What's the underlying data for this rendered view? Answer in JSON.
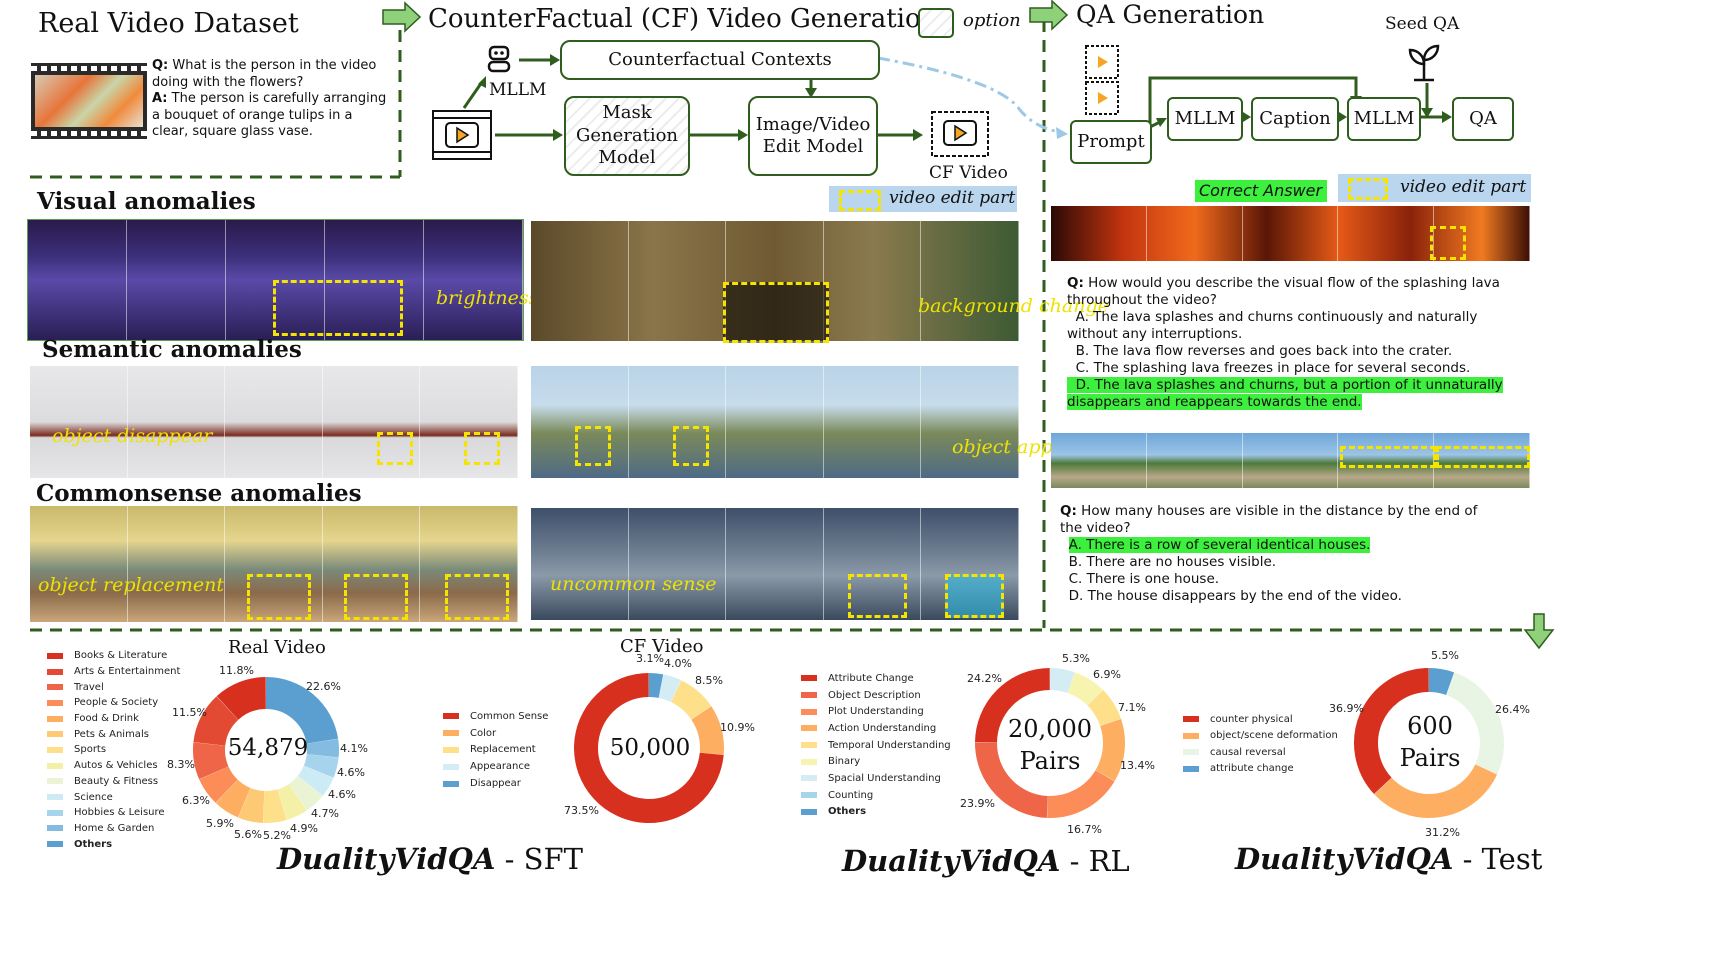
{
  "real_video": {
    "title": "Real Video Dataset",
    "q_label": "Q:",
    "question": "What is the person in the video doing with the flowers?",
    "a_label": "A:",
    "answer": "The person is carefully arranging a bouquet of orange tulips in a clear, square glass vase."
  },
  "cf_generation": {
    "title": "CounterFactual (CF) Video Generation",
    "option_label": "option",
    "mllm_label": "MLLM",
    "contexts_label": "Counterfactual Contexts",
    "mask_label": "Mask Generation Model",
    "edit_label": "Image/Video Edit Model",
    "cf_video_label": "CF Video",
    "edit_part_label": "video edit part"
  },
  "qa_generation": {
    "title": "QA Generation",
    "seed_label": "Seed QA",
    "prompt_label": "Prompt",
    "mllm1_label": "MLLM",
    "caption_label": "Caption",
    "mllm2_label": "MLLM",
    "qa_label": "QA",
    "correct_answer_label": "Correct Answer",
    "edit_part_label": "video edit part",
    "example1": {
      "q_label": "Q:",
      "question": "How would you describe the visual flow of the splashing lava throughout the video?",
      "options": [
        "A. The lava splashes and churns continuously and naturally without any interruptions.",
        "B. The lava flow reverses and goes back into the crater.",
        "C. The splashing lava freezes in place for several seconds.",
        "D. The lava splashes and churns, but a portion of it unnaturally disappears and reappears towards the end."
      ]
    },
    "example2": {
      "q_label": "Q:",
      "question": "How many houses are visible in the distance by the end of the video?",
      "options": [
        "A. There is a row of several identical houses.",
        "B. There are no houses visible.",
        "C. There is one house.",
        "D. The house disappears by the end of the video."
      ]
    }
  },
  "anomalies": {
    "visual_title": "Visual anomalies",
    "semantic_title": "Semantic anomalies",
    "commonsense_title": "Commonsense anomalies",
    "labels": {
      "brightness": "brightness change",
      "background": "background change",
      "disappear": "object disappear",
      "appear": "object appear",
      "replacement": "object replacement",
      "uncommon": "uncommon sense"
    }
  },
  "stats": {
    "real_video_title": "Real Video",
    "cf_video_title": "CF Video",
    "sft_title_bold": "DualityVidQA",
    "sft_title_rest": " - SFT",
    "rl_title_bold": "DualityVidQA",
    "rl_title_rest": " - RL",
    "test_title_bold": "DualityVidQA",
    "test_title_rest": " - Test"
  },
  "chart_data": [
    {
      "type": "pie",
      "title": "Real Video",
      "center_label": "54,879",
      "categories": [
        "Books & Literature",
        "Arts & Entertainment",
        "Travel",
        "People & Society",
        "Food & Drink",
        "Pets & Animals",
        "Sports",
        "Autos & Vehicles",
        "Beauty & Fitness",
        "Science",
        "Hobbies & Leisure",
        "Home & Garden",
        "Others"
      ],
      "colors": [
        "#d7301f",
        "#e34a33",
        "#ef6548",
        "#fc8d59",
        "#fdae61",
        "#fdc974",
        "#fee08b",
        "#f5f0a8",
        "#eaf4d5",
        "#ccebf5",
        "#a6d4ec",
        "#83bce0",
        "#5a9fd0"
      ],
      "values": [
        11.8,
        11.5,
        8.3,
        6.3,
        5.9,
        5.6,
        5.2,
        4.9,
        4.7,
        4.6,
        4.6,
        4.1,
        22.6
      ],
      "legend": "left"
    },
    {
      "type": "pie",
      "title": "CF Video",
      "center_label": "50,000",
      "categories": [
        "Common Sense",
        "Color",
        "Replacement",
        "Appearance",
        "Disappear"
      ],
      "colors": [
        "#d7301f",
        "#fdae61",
        "#fee08b",
        "#d4ecf4",
        "#5a9fd0"
      ],
      "values": [
        73.5,
        10.9,
        8.5,
        4.0,
        3.1
      ],
      "legend": "left"
    },
    {
      "type": "pie",
      "center_label": "20,000 Pairs",
      "categories": [
        "Attribute Change",
        "Object Description",
        "Plot Understanding",
        "Action Understanding",
        "Temporal Understanding",
        "Binary",
        "Spacial Understanding",
        "Counting",
        "Others"
      ],
      "colors": [
        "#d7301f",
        "#ef6548",
        "#fc8d59",
        "#fdae61",
        "#fee08b",
        "#f7f4b0",
        "#d4ecf4",
        "#a6d4ec",
        "#5a9fd0"
      ],
      "values": [
        24.2,
        23.9,
        16.7,
        13.4,
        7.1,
        6.9,
        5.3,
        0,
        0
      ],
      "legend": "left"
    },
    {
      "type": "pie",
      "center_label": "600 Pairs",
      "categories": [
        "counter physical",
        "object/scene deformation",
        "causal reversal",
        "attribute change"
      ],
      "colors": [
        "#d7301f",
        "#fdae61",
        "#e8f4e4",
        "#5a9fd0"
      ],
      "values": [
        36.9,
        31.2,
        26.4,
        5.5
      ],
      "legend": "left"
    }
  ]
}
